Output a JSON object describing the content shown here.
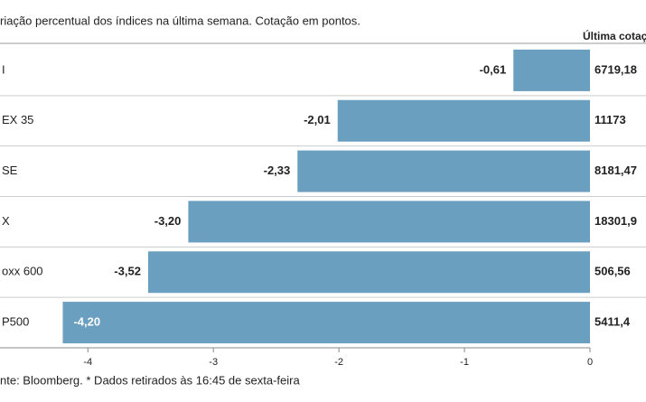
{
  "chart_data": {
    "type": "barh",
    "title": "riação percentual dos índices na última semana. Cotação em pontos.",
    "column_header": "Última cotaç",
    "categories": [
      "I",
      "EX 35",
      "SE",
      "X",
      "oxx 600",
      "P500"
    ],
    "values": [
      -0.61,
      -2.01,
      -2.33,
      -3.2,
      -3.52,
      -4.2
    ],
    "value_labels": [
      "-0,61",
      "-2,01",
      "-2,33",
      "-3,20",
      "-3,52",
      "-4,20"
    ],
    "last_quotes": [
      "6719,18",
      "11173",
      "8181,47",
      "18301,9",
      "506,56",
      "5411,4"
    ],
    "color": "#6a9fbf",
    "xlim": [
      -4.7,
      0
    ],
    "xticks": [
      -4,
      -3,
      -2,
      -1,
      0
    ],
    "footer": "nte: Bloomberg.  * Dados retirados às 16:45 de sexta-feira"
  }
}
